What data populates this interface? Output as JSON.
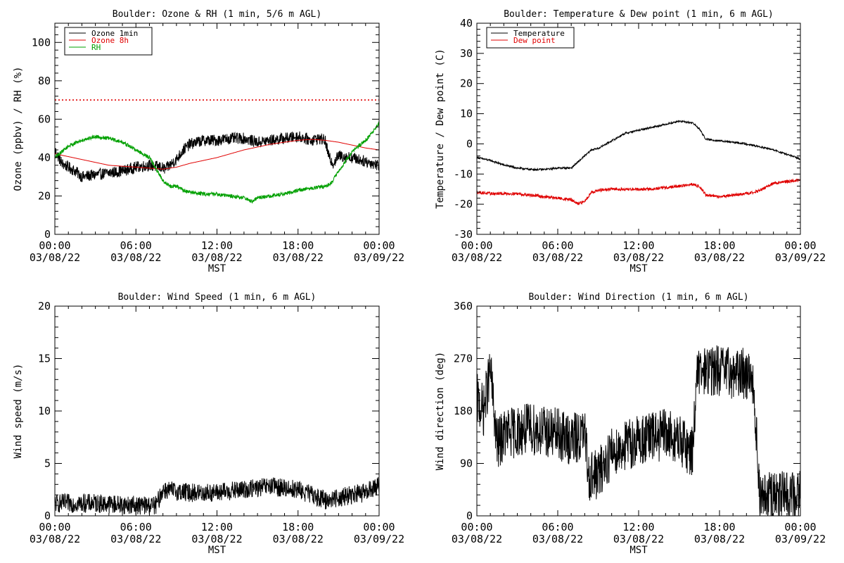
{
  "chart_data": [
    {
      "type": "line",
      "title": "Boulder: Ozone & RH (1 min, 5/6 m AGL)",
      "xlabel": "MST",
      "ylabel": "Ozone (ppbv) / RH (%)",
      "x_ticks": [
        {
          "time": "00:00",
          "date": "03/08/22",
          "hour": 0
        },
        {
          "time": "06:00",
          "date": "03/08/22",
          "hour": 6
        },
        {
          "time": "12:00",
          "date": "03/08/22",
          "hour": 12
        },
        {
          "time": "18:00",
          "date": "03/08/22",
          "hour": 18
        },
        {
          "time": "00:00",
          "date": "03/09/22",
          "hour": 24
        }
      ],
      "y_ticks": [
        0,
        20,
        40,
        60,
        80,
        100
      ],
      "ylim": [
        0,
        110
      ],
      "legend_position": "top-left",
      "reference_line": {
        "y": 70,
        "color": "#e00000",
        "style": "dotted"
      },
      "series": [
        {
          "name": "Ozone 1min",
          "color": "#000000",
          "noise": 3,
          "points": [
            [
              0,
              44
            ],
            [
              0.5,
              37
            ],
            [
              1,
              35
            ],
            [
              1.5,
              33
            ],
            [
              2,
              30
            ],
            [
              3,
              31
            ],
            [
              4,
              32
            ],
            [
              5,
              33
            ],
            [
              6,
              35
            ],
            [
              7,
              36
            ],
            [
              7.8,
              35
            ],
            [
              8.2,
              34
            ],
            [
              8.5,
              36
            ],
            [
              9,
              39
            ],
            [
              9.5,
              44
            ],
            [
              10,
              47
            ],
            [
              11,
              49
            ],
            [
              12,
              49
            ],
            [
              13,
              50
            ],
            [
              14,
              50
            ],
            [
              15,
              48
            ],
            [
              16,
              49
            ],
            [
              17,
              50
            ],
            [
              18,
              51
            ],
            [
              19,
              49
            ],
            [
              19.5,
              50
            ],
            [
              20,
              49
            ],
            [
              20.3,
              40
            ],
            [
              20.6,
              37
            ],
            [
              21,
              41
            ],
            [
              22,
              40
            ],
            [
              23,
              38
            ],
            [
              24,
              36
            ]
          ]
        },
        {
          "name": "Ozone 8h",
          "color": "#e00000",
          "noise": 0,
          "points": [
            [
              0,
              42
            ],
            [
              2,
              39
            ],
            [
              4,
              36
            ],
            [
              6,
              35
            ],
            [
              7,
              34.5
            ],
            [
              8,
              34
            ],
            [
              9,
              35
            ],
            [
              10,
              37
            ],
            [
              12,
              40
            ],
            [
              14,
              44
            ],
            [
              16,
              47
            ],
            [
              18,
              49
            ],
            [
              19,
              49.5
            ],
            [
              20,
              49
            ],
            [
              21,
              48
            ],
            [
              22,
              46.5
            ],
            [
              23,
              45
            ],
            [
              24,
              44
            ]
          ]
        },
        {
          "name": "RH",
          "color": "#00a000",
          "noise": 1,
          "points": [
            [
              0,
              40
            ],
            [
              0.5,
              43
            ],
            [
              1,
              46
            ],
            [
              2,
              49
            ],
            [
              3,
              51
            ],
            [
              4,
              50
            ],
            [
              5,
              48
            ],
            [
              6,
              44
            ],
            [
              7,
              40
            ],
            [
              7.5,
              34
            ],
            [
              8,
              28
            ],
            [
              8.5,
              25
            ],
            [
              9,
              25
            ],
            [
              9.5,
              23
            ],
            [
              10,
              22
            ],
            [
              11,
              21
            ],
            [
              12,
              21
            ],
            [
              13,
              20
            ],
            [
              14,
              19
            ],
            [
              14.6,
              17
            ],
            [
              15,
              19
            ],
            [
              16,
              20
            ],
            [
              17,
              21
            ],
            [
              18,
              23
            ],
            [
              19,
              24
            ],
            [
              20,
              25
            ],
            [
              20.5,
              27
            ],
            [
              21,
              33
            ],
            [
              21.5,
              38
            ],
            [
              22,
              43
            ],
            [
              23,
              49
            ],
            [
              23.5,
              53
            ],
            [
              24,
              58
            ]
          ]
        }
      ]
    },
    {
      "type": "line",
      "title": "Boulder: Temperature & Dew point (1 min, 6 m AGL)",
      "xlabel": "MST",
      "ylabel": "Temperature / Dew point (C)",
      "x_ticks": [
        {
          "time": "00:00",
          "date": "03/08/22",
          "hour": 0
        },
        {
          "time": "06:00",
          "date": "03/08/22",
          "hour": 6
        },
        {
          "time": "12:00",
          "date": "03/08/22",
          "hour": 12
        },
        {
          "time": "18:00",
          "date": "03/08/22",
          "hour": 18
        },
        {
          "time": "00:00",
          "date": "03/09/22",
          "hour": 24
        }
      ],
      "y_ticks": [
        -30,
        -20,
        -10,
        0,
        10,
        20,
        30,
        40
      ],
      "ylim": [
        -30,
        40
      ],
      "legend_position": "top-left",
      "series": [
        {
          "name": "Temperature",
          "color": "#000000",
          "noise": 0.3,
          "points": [
            [
              0,
              -4.5
            ],
            [
              1,
              -5.5
            ],
            [
              2,
              -7
            ],
            [
              3,
              -8
            ],
            [
              4,
              -8.5
            ],
            [
              5,
              -8.5
            ],
            [
              6,
              -8
            ],
            [
              7,
              -8
            ],
            [
              7.5,
              -6
            ],
            [
              8,
              -4
            ],
            [
              8.5,
              -2
            ],
            [
              9,
              -1.5
            ],
            [
              10,
              1
            ],
            [
              11,
              3.5
            ],
            [
              12,
              4.5
            ],
            [
              13,
              5.5
            ],
            [
              14,
              6.5
            ],
            [
              15,
              7.5
            ],
            [
              16,
              7
            ],
            [
              16.5,
              5
            ],
            [
              17,
              1.5
            ],
            [
              18,
              1
            ],
            [
              19,
              0.5
            ],
            [
              20,
              0
            ],
            [
              21,
              -1
            ],
            [
              22,
              -2
            ],
            [
              23,
              -3.5
            ],
            [
              24,
              -5
            ]
          ]
        },
        {
          "name": "Dew point",
          "color": "#e00000",
          "noise": 0.5,
          "points": [
            [
              0,
              -16
            ],
            [
              1,
              -16.5
            ],
            [
              2,
              -16.5
            ],
            [
              3,
              -16.5
            ],
            [
              4,
              -17
            ],
            [
              5,
              -17.5
            ],
            [
              6,
              -18
            ],
            [
              7,
              -18.5
            ],
            [
              7.5,
              -20
            ],
            [
              8,
              -19
            ],
            [
              8.5,
              -16
            ],
            [
              9,
              -15.5
            ],
            [
              10,
              -15
            ],
            [
              11,
              -15
            ],
            [
              12,
              -15
            ],
            [
              13,
              -15
            ],
            [
              14,
              -14.5
            ],
            [
              15,
              -14
            ],
            [
              16,
              -13.5
            ],
            [
              16.5,
              -14
            ],
            [
              17,
              -17
            ],
            [
              18,
              -17.5
            ],
            [
              19,
              -17
            ],
            [
              20,
              -16.5
            ],
            [
              21,
              -15.5
            ],
            [
              22,
              -13
            ],
            [
              23,
              -12.5
            ],
            [
              24,
              -12
            ]
          ]
        }
      ]
    },
    {
      "type": "line",
      "title": "Boulder: Wind Speed (1 min, 6 m AGL)",
      "xlabel": "MST",
      "ylabel": "Wind speed (m/s)",
      "x_ticks": [
        {
          "time": "00:00",
          "date": "03/08/22",
          "hour": 0
        },
        {
          "time": "06:00",
          "date": "03/08/22",
          "hour": 6
        },
        {
          "time": "12:00",
          "date": "03/08/22",
          "hour": 12
        },
        {
          "time": "18:00",
          "date": "03/08/22",
          "hour": 18
        },
        {
          "time": "00:00",
          "date": "03/09/22",
          "hour": 24
        }
      ],
      "y_ticks": [
        0,
        5,
        10,
        15,
        20
      ],
      "ylim": [
        0,
        20
      ],
      "series": [
        {
          "color": "#000000",
          "noise": 0.9,
          "floor": 0,
          "points": [
            [
              0,
              1.2
            ],
            [
              3,
              1.2
            ],
            [
              6,
              1
            ],
            [
              7.5,
              1
            ],
            [
              8,
              2.5
            ],
            [
              10,
              2.2
            ],
            [
              12,
              2.2
            ],
            [
              14,
              2.5
            ],
            [
              16,
              2.8
            ],
            [
              18,
              2.5
            ],
            [
              19,
              2
            ],
            [
              20,
              1.5
            ],
            [
              22,
              2
            ],
            [
              23,
              2.2
            ],
            [
              24,
              3
            ]
          ]
        }
      ]
    },
    {
      "type": "line",
      "title": "Boulder: Wind Direction (1 min, 6 m AGL)",
      "xlabel": "MST",
      "ylabel": "Wind direction (deg)",
      "x_ticks": [
        {
          "time": "00:00",
          "date": "03/08/22",
          "hour": 0
        },
        {
          "time": "06:00",
          "date": "03/08/22",
          "hour": 6
        },
        {
          "time": "12:00",
          "date": "03/08/22",
          "hour": 12
        },
        {
          "time": "18:00",
          "date": "03/08/22",
          "hour": 18
        },
        {
          "time": "00:00",
          "date": "03/09/22",
          "hour": 24
        }
      ],
      "y_ticks": [
        0,
        90,
        180,
        270,
        360
      ],
      "ylim": [
        0,
        360
      ],
      "series": [
        {
          "color": "#000000",
          "noise": 45,
          "floor": 0,
          "ceil": 360,
          "points": [
            [
              0,
              200
            ],
            [
              0.5,
              180
            ],
            [
              1,
              250
            ],
            [
              1.5,
              120
            ],
            [
              2,
              140
            ],
            [
              4,
              150
            ],
            [
              6,
              140
            ],
            [
              7,
              130
            ],
            [
              8,
              140
            ],
            [
              8.3,
              70
            ],
            [
              9,
              70
            ],
            [
              10,
              110
            ],
            [
              12,
              130
            ],
            [
              14,
              140
            ],
            [
              15,
              130
            ],
            [
              15.5,
              120
            ],
            [
              16,
              110
            ],
            [
              16.3,
              240
            ],
            [
              17,
              250
            ],
            [
              18,
              250
            ],
            [
              19,
              245
            ],
            [
              20,
              245
            ],
            [
              20.5,
              235
            ],
            [
              21,
              30
            ],
            [
              22,
              30
            ],
            [
              24,
              35
            ]
          ]
        }
      ]
    }
  ]
}
